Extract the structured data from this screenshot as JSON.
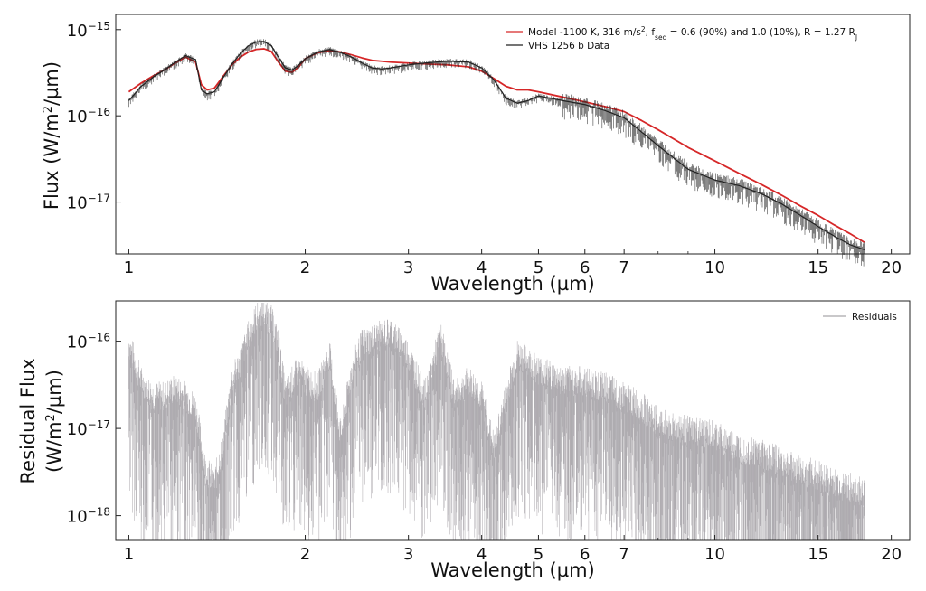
{
  "chart_data": [
    {
      "type": "line",
      "xscale": "log",
      "yscale": "log",
      "xlim": [
        0.95,
        21.5
      ],
      "ylim": [
        2.5e-18,
        1.5e-15
      ],
      "xlabel": "Wavelength (µm)",
      "ylabel_prefix": "Flux (W/m",
      "ylabel_sup": "2",
      "ylabel_suffix": "/µm)",
      "x_ticks": [
        1,
        2,
        3,
        4,
        5,
        6,
        7,
        10,
        15,
        20
      ],
      "x_tick_labels": [
        "1",
        "2",
        "3",
        "4",
        "5",
        "6",
        "7",
        "10",
        "15",
        "20"
      ],
      "y_tick_exponents": [
        -15,
        -16,
        -17
      ],
      "y_tick_base": "10",
      "grid": false,
      "legend_position": "top-right",
      "legend": {
        "model": {
          "p1": "Model -1100 K, 316 m/s",
          "sup1": "2",
          "p2": ", f",
          "sub1": "sed",
          "p3": " = 0.6 (90%) and 1.0 (10%), R = 1.27 R",
          "sub2": "J"
        },
        "data": "VHS 1256 b Data"
      },
      "series": [
        {
          "id": "model",
          "color": "#d62728",
          "x": [
            1.0,
            1.05,
            1.1,
            1.15,
            1.2,
            1.25,
            1.3,
            1.33,
            1.36,
            1.4,
            1.45,
            1.5,
            1.55,
            1.6,
            1.65,
            1.7,
            1.75,
            1.8,
            1.85,
            1.9,
            1.95,
            2.0,
            2.1,
            2.2,
            2.3,
            2.4,
            2.5,
            2.6,
            2.7,
            2.8,
            3.0,
            3.2,
            3.5,
            3.8,
            4.0,
            4.2,
            4.4,
            4.6,
            4.8,
            5.0,
            5.5,
            6.0,
            6.5,
            7.0,
            7.5,
            8.0,
            9.0,
            10.0,
            11.0,
            12.0,
            13.0,
            14.0,
            15.0,
            16.0,
            17.0,
            18.0
          ],
          "y": [
            1.9e-16,
            2.4e-16,
            2.9e-16,
            3.4e-16,
            4.1e-16,
            4.8e-16,
            4.2e-16,
            2.3e-16,
            2e-16,
            2.1e-16,
            2.9e-16,
            3.9e-16,
            4.8e-16,
            5.5e-16,
            5.9e-16,
            6e-16,
            5.6e-16,
            4.2e-16,
            3.3e-16,
            3.2e-16,
            3.7e-16,
            4.6e-16,
            5.4e-16,
            5.7e-16,
            5.5e-16,
            5.1e-16,
            4.7e-16,
            4.4e-16,
            4.3e-16,
            4.2e-16,
            4.1e-16,
            4e-16,
            3.9e-16,
            3.7e-16,
            3.3e-16,
            2.7e-16,
            2.2e-16,
            2e-16,
            2e-16,
            1.9e-16,
            1.65e-16,
            1.45e-16,
            1.28e-16,
            1.12e-16,
            8.8e-17,
            6.9e-17,
            4.3e-17,
            3e-17,
            2.15e-17,
            1.6e-17,
            1.2e-17,
            9e-18,
            7e-18,
            5.4e-18,
            4.3e-18,
            3.4e-18
          ]
        },
        {
          "id": "data",
          "color": "#222222",
          "x": [
            1.0,
            1.05,
            1.1,
            1.15,
            1.2,
            1.25,
            1.3,
            1.33,
            1.36,
            1.4,
            1.45,
            1.5,
            1.55,
            1.6,
            1.65,
            1.7,
            1.75,
            1.8,
            1.85,
            1.9,
            1.95,
            2.0,
            2.1,
            2.2,
            2.3,
            2.4,
            2.5,
            2.6,
            2.7,
            2.8,
            3.0,
            3.2,
            3.5,
            3.8,
            4.0,
            4.2,
            4.4,
            4.6,
            4.8,
            5.0,
            5.5,
            6.0,
            6.5,
            7.0,
            7.5,
            8.0,
            9.0,
            10.0,
            11.0,
            12.0,
            13.0,
            14.0,
            15.0,
            16.0,
            17.0,
            18.0
          ],
          "y": [
            1.5e-16,
            2.2e-16,
            2.8e-16,
            3.4e-16,
            4.2e-16,
            5e-16,
            4.5e-16,
            2e-16,
            1.8e-16,
            1.9e-16,
            2.8e-16,
            4e-16,
            5.3e-16,
            6.5e-16,
            7.2e-16,
            7.3e-16,
            6.5e-16,
            4.8e-16,
            3.6e-16,
            3.4e-16,
            3.9e-16,
            4.6e-16,
            5.5e-16,
            5.9e-16,
            5.4e-16,
            4.8e-16,
            4.1e-16,
            3.6e-16,
            3.5e-16,
            3.6e-16,
            3.9e-16,
            4.1e-16,
            4.3e-16,
            4.2e-16,
            3.6e-16,
            2.6e-16,
            1.6e-16,
            1.4e-16,
            1.5e-16,
            1.7e-16,
            1.5e-16,
            1.35e-16,
            1.15e-16,
            9.5e-17,
            6.5e-17,
            4.5e-17,
            2.4e-17,
            1.8e-17,
            1.55e-17,
            1.25e-17,
            9.5e-18,
            7e-18,
            5.2e-18,
            4e-18,
            3.2e-18,
            2.8e-18
          ]
        }
      ]
    },
    {
      "type": "line",
      "xscale": "log",
      "yscale": "log",
      "xlim": [
        0.95,
        21.5
      ],
      "ylim": [
        5.2e-19,
        2.9e-16
      ],
      "xlabel": "Wavelength (µm)",
      "ylabel_line1": "Residual Flux",
      "ylabel_prefix": "(W/m",
      "ylabel_sup": "2",
      "ylabel_suffix": "/µm)",
      "x_ticks": [
        1,
        2,
        3,
        4,
        5,
        6,
        7,
        10,
        15,
        20
      ],
      "x_tick_labels": [
        "1",
        "2",
        "3",
        "4",
        "5",
        "6",
        "7",
        "10",
        "15",
        "20"
      ],
      "y_tick_exponents": [
        -16,
        -17,
        -18
      ],
      "y_tick_base": "10",
      "grid": false,
      "legend_position": "top-right",
      "legend": {
        "residuals": "Residuals"
      },
      "series": [
        {
          "id": "residuals",
          "color": "#a9a6ab",
          "x": [
            1.0,
            1.05,
            1.1,
            1.15,
            1.2,
            1.25,
            1.3,
            1.35,
            1.4,
            1.45,
            1.5,
            1.55,
            1.6,
            1.65,
            1.7,
            1.75,
            1.8,
            1.85,
            1.9,
            1.95,
            2.0,
            2.1,
            2.2,
            2.3,
            2.4,
            2.5,
            2.6,
            2.7,
            2.8,
            3.0,
            3.2,
            3.4,
            3.6,
            3.8,
            4.0,
            4.2,
            4.4,
            4.6,
            4.8,
            5.0,
            5.5,
            6.0,
            6.5,
            7.0,
            7.5,
            8.0,
            9.0,
            10.0,
            11.0,
            12.0,
            13.0,
            14.0,
            15.0,
            16.0,
            17.0,
            18.0
          ],
          "y": [
            8e-17,
            3e-17,
            2e-17,
            2e-17,
            2.5e-17,
            2e-17,
            1.5e-17,
            3e-18,
            2e-18,
            6e-18,
            3e-17,
            5e-17,
            1e-16,
            1.6e-16,
            1.8e-16,
            1.5e-16,
            8e-17,
            2e-17,
            3e-17,
            4e-17,
            3e-17,
            2.5e-17,
            6e-17,
            7e-18,
            4e-17,
            8e-17,
            9e-17,
            1e-16,
            1.1e-16,
            6e-17,
            2e-17,
            1e-16,
            2e-17,
            3e-17,
            2e-17,
            5e-18,
            2e-17,
            6e-17,
            5e-17,
            4e-17,
            3e-17,
            3e-17,
            2.5e-17,
            2e-17,
            1.5e-17,
            1e-17,
            8e-18,
            7e-18,
            5e-18,
            4.5e-18,
            3.5e-18,
            2.8e-18,
            2.5e-18,
            2e-18,
            1.8e-18,
            1.5e-18
          ]
        }
      ]
    }
  ]
}
